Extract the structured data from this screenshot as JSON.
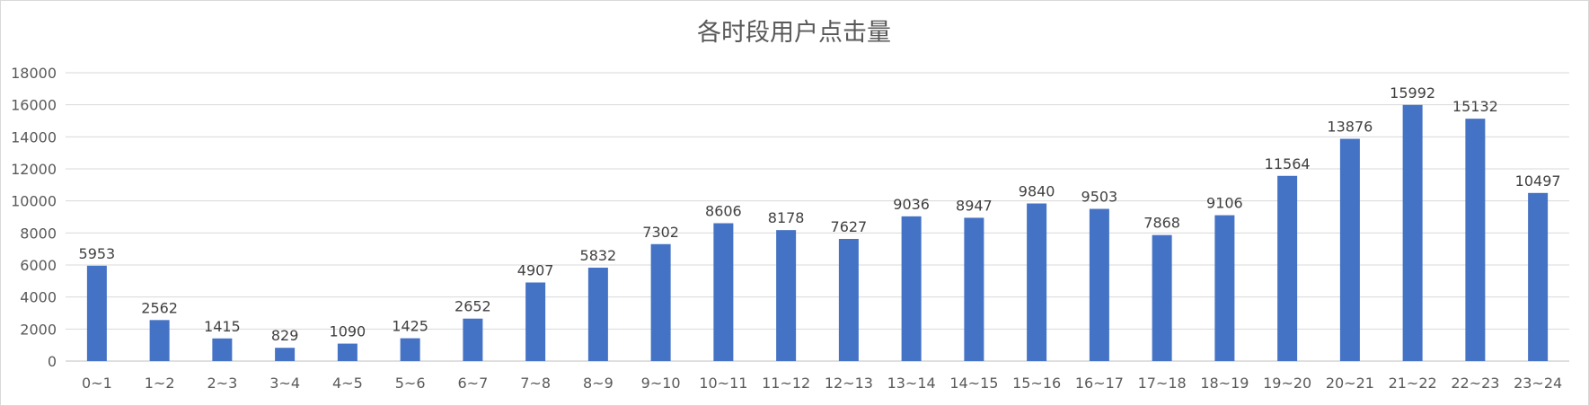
{
  "chart_data": {
    "type": "bar",
    "title": "各时段用户点击量",
    "xlabel": "",
    "ylabel": "",
    "categories": [
      "0~1",
      "1~2",
      "2~3",
      "3~4",
      "4~5",
      "5~6",
      "6~7",
      "7~8",
      "8~9",
      "9~10",
      "10~11",
      "11~12",
      "12~13",
      "13~14",
      "14~15",
      "15~16",
      "16~17",
      "17~18",
      "18~19",
      "19~20",
      "20~21",
      "21~22",
      "22~23",
      "23~24"
    ],
    "values": [
      5953,
      2562,
      1415,
      829,
      1090,
      1425,
      2652,
      4907,
      5832,
      7302,
      8606,
      8178,
      7627,
      9036,
      8947,
      9840,
      9503,
      7868,
      9106,
      11564,
      13876,
      15992,
      15132,
      10497
    ],
    "ylim": [
      0,
      18000
    ],
    "yticks": [
      0,
      2000,
      4000,
      6000,
      8000,
      10000,
      12000,
      14000,
      16000,
      18000
    ],
    "grid": true,
    "data_labels": true,
    "bar_color": "#4472C4"
  }
}
